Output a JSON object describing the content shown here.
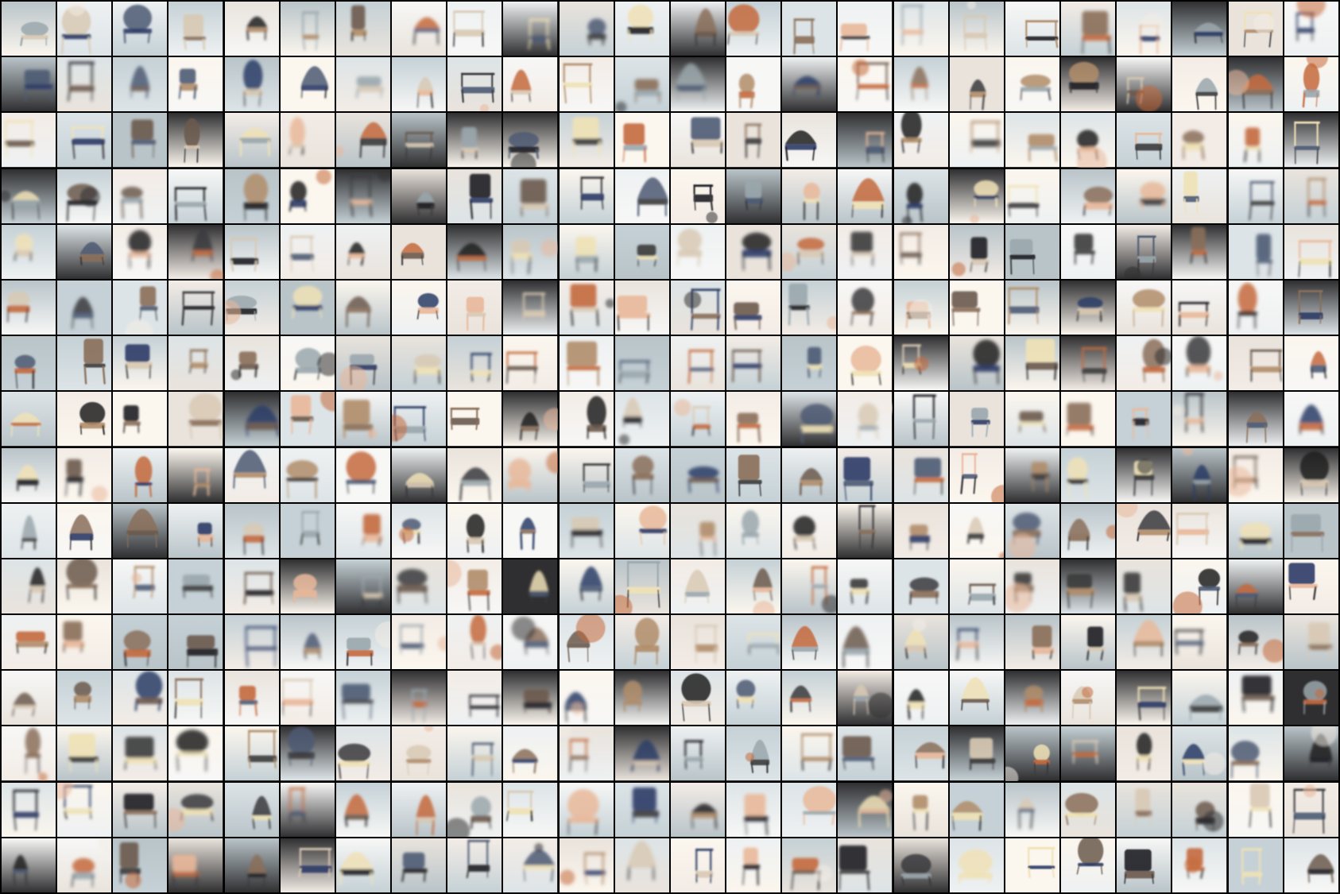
{
  "grid": {
    "rows": 16,
    "cols": 24,
    "subject": "chair",
    "palette": {
      "backgrounds": [
        "#f7f7f6",
        "#eef1f2",
        "#dde4e7",
        "#c5d1d6",
        "#f3ece6",
        "#e9e3dc",
        "#b9c4c9",
        "#2f2f31",
        "#fbf6ee"
      ],
      "objects": [
        "#3a3a3c",
        "#6b5a4e",
        "#8a6f5a",
        "#b08d6a",
        "#d8c9b4",
        "#f0e2b6",
        "#4d5b73",
        "#2b3c66",
        "#c46a3d",
        "#9aa7ad",
        "#e9b89a",
        "#1f1f21"
      ]
    }
  }
}
